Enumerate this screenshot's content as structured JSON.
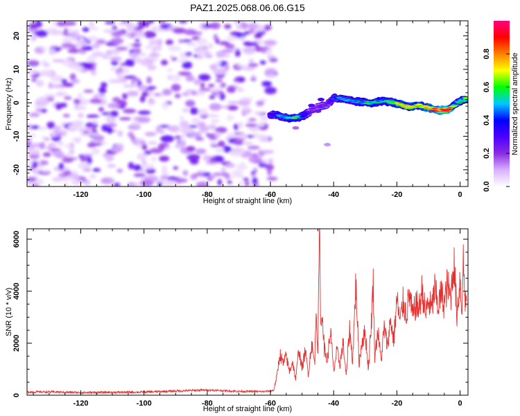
{
  "figure": {
    "title": "PAZ1.2025.068.06.06.G15"
  },
  "chart_data": [
    {
      "type": "heatmap",
      "xlabel": "Height of straight line (km)",
      "ylabel": "Frequency (Hz)",
      "xlim": [
        -137,
        2.5
      ],
      "ylim": [
        -25,
        24.5
      ],
      "xticks": [
        -120,
        -100,
        -80,
        -60,
        -40,
        -20,
        0
      ],
      "yticks": [
        -20,
        -10,
        0,
        10,
        20
      ],
      "noise_region": {
        "x": [
          -137,
          -59
        ],
        "y": [
          -25,
          24.5
        ]
      },
      "signal_ridge": {
        "x": [
          -60,
          -57,
          -54,
          -52,
          -50,
          -48,
          -46,
          -44,
          -42,
          -40,
          -37,
          -34,
          -31,
          -28,
          -25,
          -22,
          -19,
          -16,
          -13,
          -10,
          -7,
          -4,
          -1,
          2
        ],
        "frequency": [
          -3.5,
          -4.0,
          -4.5,
          -4.5,
          -4.0,
          -3.0,
          -1.5,
          -1.0,
          -0.5,
          1.5,
          1.0,
          0.5,
          0.2,
          0.0,
          0.5,
          0.3,
          -0.5,
          -1.3,
          -0.8,
          -1.5,
          -2.2,
          -2.2,
          0.0,
          1.3
        ],
        "amplitude": [
          0.35,
          0.45,
          0.55,
          0.6,
          0.45,
          0.3,
          0.2,
          0.25,
          0.25,
          0.4,
          0.45,
          0.5,
          0.5,
          0.55,
          0.5,
          0.55,
          0.7,
          0.75,
          0.7,
          0.75,
          0.85,
          0.95,
          0.5,
          0.6
        ]
      },
      "colorbar": {
        "label": "Normalized spectral amplitude",
        "range": [
          0.0,
          1.0
        ],
        "ticks": [
          0.0,
          0.2,
          0.4,
          0.6,
          0.8
        ],
        "tick_labels": [
          "0.0",
          "0.2",
          "0.4",
          "0.6",
          "0.8"
        ],
        "colors": [
          "#ffffff",
          "#d8b0ff",
          "#8a2be2",
          "#4b00ff",
          "#0000ff",
          "#00c8ff",
          "#00ff00",
          "#ffff00",
          "#ff8000",
          "#ff0000",
          "#ff0080"
        ]
      },
      "grid": false
    },
    {
      "type": "line",
      "xlabel": "Height of straight line (km)",
      "ylabel": "SNR (10 * v/v)",
      "xlim": [
        -137,
        2.5
      ],
      "ylim": [
        0,
        6400
      ],
      "xticks": [
        -120,
        -100,
        -80,
        -60,
        -40,
        -20,
        0
      ],
      "yticks": [
        0,
        2000,
        4000,
        6000
      ],
      "series": [
        {
          "color": "#e53030",
          "x": [
            -137,
            -130,
            -120,
            -110,
            -100,
            -90,
            -80,
            -70,
            -62,
            -59,
            -58,
            -57,
            -56,
            -55,
            -54,
            -53,
            -52,
            -51,
            -50,
            -49,
            -48,
            -47,
            -46,
            -45.5,
            -45,
            -44.5,
            -44,
            -43.5,
            -43,
            -42,
            -41,
            -40,
            -39,
            -38,
            -37,
            -36,
            -35,
            -34,
            -33,
            -32.5,
            -32,
            -31,
            -30,
            -29,
            -28,
            -27.5,
            -27,
            -26,
            -25,
            -24,
            -23,
            -22,
            -21,
            -20,
            -19,
            -18,
            -17,
            -16,
            -15,
            -14,
            -13,
            -12,
            -11,
            -10,
            -9,
            -8,
            -7,
            -6,
            -5,
            -4,
            -3,
            -2,
            -1,
            0,
            0.5,
            1,
            1.5,
            2
          ],
          "y": [
            120,
            130,
            100,
            110,
            120,
            160,
            200,
            150,
            140,
            180,
            700,
            1600,
            1200,
            1500,
            900,
            1300,
            600,
            1800,
            1000,
            1700,
            800,
            2000,
            1200,
            3500,
            1500,
            6400,
            2500,
            3200,
            1800,
            1300,
            2500,
            900,
            1700,
            1200,
            2000,
            700,
            2600,
            1300,
            4300,
            3000,
            1200,
            2100,
            2400,
            1000,
            3000,
            4400,
            1500,
            2500,
            1300,
            2600,
            1900,
            2900,
            2100,
            3700,
            2800,
            3600,
            3100,
            3900,
            3000,
            3500,
            3300,
            4100,
            3100,
            3600,
            3300,
            4100,
            3400,
            3900,
            3500,
            4300,
            3700,
            5200,
            3100,
            4500,
            3200,
            5200,
            3800,
            3500
          ]
        }
      ],
      "grid": false
    }
  ]
}
